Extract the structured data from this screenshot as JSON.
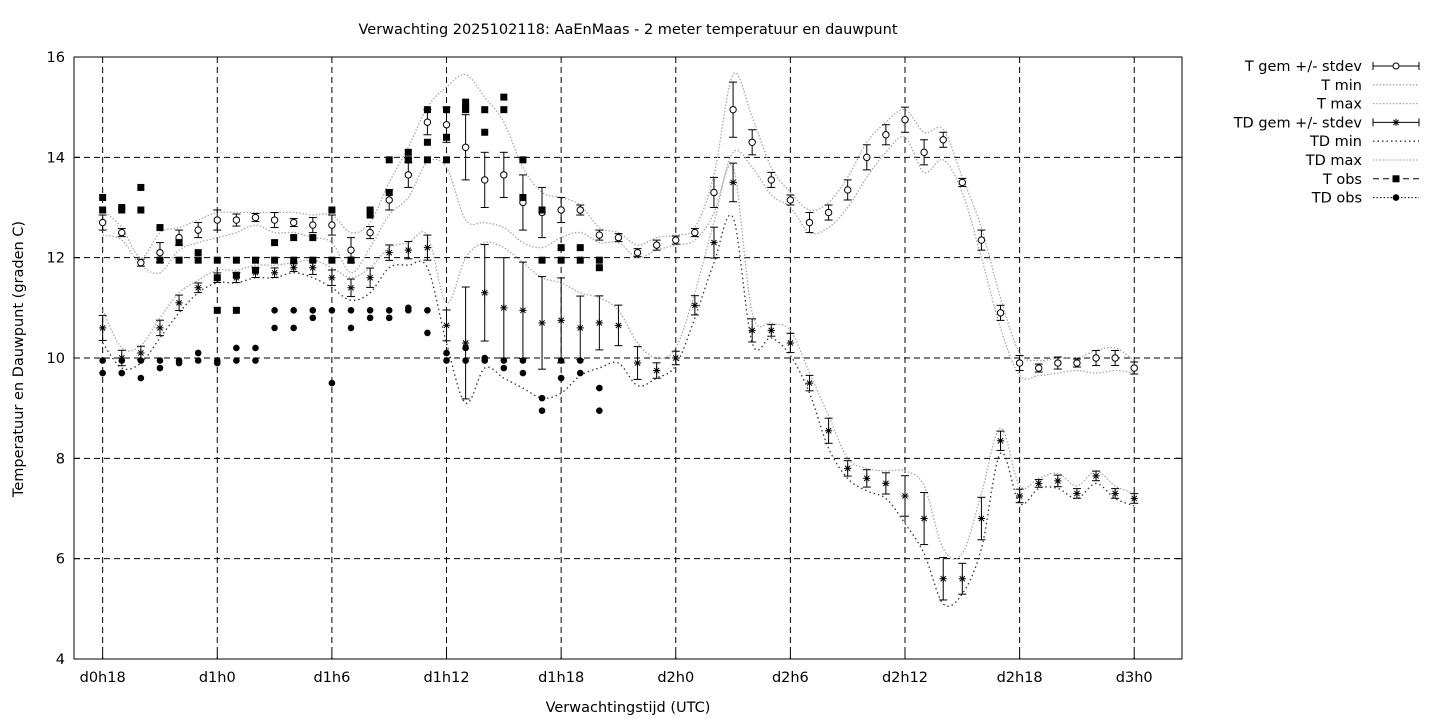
{
  "chart_data": {
    "type": "line",
    "title": "Verwachting 2025102118: AaEnMaas - 2 meter temperatuur en dauwpunt",
    "xlabel": "Verwachtingstijd (UTC)",
    "ylabel": "Temperatuur en Dauwpunt (graden C)",
    "xlim": [
      -1.5,
      56.5
    ],
    "ylim": [
      4,
      16
    ],
    "x_ticks": [
      {
        "x": 0,
        "label": "d0h18"
      },
      {
        "x": 6,
        "label": "d1h0"
      },
      {
        "x": 12,
        "label": "d1h6"
      },
      {
        "x": 18,
        "label": "d1h12"
      },
      {
        "x": 24,
        "label": "d1h18"
      },
      {
        "x": 30,
        "label": "d2h0"
      },
      {
        "x": 36,
        "label": "d2h6"
      },
      {
        "x": 42,
        "label": "d2h12"
      },
      {
        "x": 48,
        "label": "d2h18"
      },
      {
        "x": 54,
        "label": "d3h0"
      }
    ],
    "y_ticks": [
      4,
      6,
      8,
      10,
      12,
      14,
      16
    ],
    "grid": true,
    "legend_position": "outside-right",
    "series": [
      {
        "name": "T gem +/- stdev",
        "style": "open-circle-errorbar",
        "x": [
          0,
          1,
          2,
          3,
          4,
          5,
          6,
          7,
          8,
          9,
          10,
          11,
          12,
          13,
          14,
          15,
          16,
          17,
          18,
          19,
          20,
          21,
          22,
          23,
          24,
          25,
          26,
          27,
          28,
          29,
          30,
          31,
          32,
          33,
          34,
          35,
          36,
          37,
          38,
          39,
          40,
          41,
          42,
          43,
          44,
          45,
          46,
          47,
          48,
          49,
          50,
          51,
          52,
          53,
          54
        ],
        "y": [
          12.7,
          12.5,
          11.9,
          12.1,
          12.4,
          12.55,
          12.75,
          12.75,
          12.8,
          12.75,
          12.7,
          12.65,
          12.65,
          12.15,
          12.5,
          13.15,
          13.65,
          14.7,
          14.65,
          14.2,
          13.55,
          13.65,
          13.1,
          12.9,
          12.95,
          12.95,
          12.45,
          12.4,
          12.1,
          12.25,
          12.35,
          12.5,
          13.3,
          14.95,
          14.3,
          13.55,
          13.15,
          12.7,
          12.9,
          13.35,
          14.0,
          14.45,
          14.75,
          14.1,
          14.35,
          13.5,
          12.35,
          10.9,
          9.9,
          9.8,
          9.9,
          9.9,
          10.0,
          10.0,
          9.8
        ],
        "stdev": [
          0.15,
          0.08,
          0.07,
          0.2,
          0.15,
          0.15,
          0.2,
          0.12,
          0.08,
          0.15,
          0.08,
          0.15,
          0.2,
          0.25,
          0.12,
          0.2,
          0.25,
          0.25,
          0.35,
          0.65,
          0.55,
          0.45,
          0.55,
          0.5,
          0.25,
          0.1,
          0.1,
          0.08,
          0.08,
          0.1,
          0.08,
          0.08,
          0.3,
          0.55,
          0.25,
          0.15,
          0.1,
          0.2,
          0.15,
          0.2,
          0.25,
          0.2,
          0.25,
          0.25,
          0.15,
          0.08,
          0.2,
          0.15,
          0.15,
          0.08,
          0.12,
          0.08,
          0.15,
          0.15,
          0.12
        ]
      },
      {
        "name": "T min",
        "style": "dotted-light",
        "x": [
          0,
          1,
          2,
          3,
          4,
          5,
          6,
          7,
          8,
          9,
          10,
          11,
          12,
          13,
          14,
          15,
          16,
          17,
          18,
          19,
          20,
          21,
          22,
          23,
          24,
          25,
          26,
          27,
          28,
          29,
          30,
          31,
          32,
          33,
          34,
          35,
          36,
          37,
          38,
          39,
          40,
          41,
          42,
          43,
          44,
          45,
          46,
          47,
          48,
          49,
          50,
          51,
          52,
          53,
          54
        ],
        "y": [
          12.45,
          12.35,
          11.85,
          11.7,
          12.15,
          12.3,
          12.4,
          12.5,
          12.65,
          12.5,
          12.5,
          12.4,
          12.3,
          11.7,
          12.2,
          12.85,
          13.2,
          13.9,
          13.8,
          12.75,
          12.7,
          12.6,
          12.3,
          12.2,
          12.4,
          12.5,
          12.3,
          12.3,
          12.0,
          12.15,
          12.25,
          12.35,
          12.9,
          14.1,
          13.8,
          13.25,
          13.0,
          12.5,
          12.6,
          13.0,
          13.6,
          14.1,
          14.4,
          13.7,
          13.95,
          13.3,
          12.0,
          10.6,
          9.65,
          9.65,
          9.7,
          9.75,
          9.7,
          9.75,
          9.7
        ]
      },
      {
        "name": "T max",
        "style": "dotted-light",
        "x": [
          0,
          1,
          2,
          3,
          4,
          5,
          6,
          7,
          8,
          9,
          10,
          11,
          12,
          13,
          14,
          15,
          16,
          17,
          18,
          19,
          20,
          21,
          22,
          23,
          24,
          25,
          26,
          27,
          28,
          29,
          30,
          31,
          32,
          33,
          34,
          35,
          36,
          37,
          38,
          39,
          40,
          41,
          42,
          43,
          44,
          45,
          46,
          47,
          48,
          49,
          50,
          51,
          52,
          53,
          54
        ],
        "y": [
          12.95,
          12.6,
          12.0,
          12.5,
          12.6,
          12.75,
          12.9,
          12.9,
          12.9,
          12.9,
          12.9,
          12.85,
          12.85,
          12.5,
          12.7,
          13.5,
          14.2,
          15.0,
          15.4,
          15.65,
          15.2,
          14.7,
          13.8,
          13.3,
          13.2,
          13.05,
          12.6,
          12.5,
          12.25,
          12.4,
          12.45,
          12.6,
          13.65,
          15.65,
          14.8,
          13.8,
          13.3,
          12.95,
          13.1,
          13.6,
          14.3,
          14.7,
          14.95,
          14.5,
          14.55,
          13.6,
          12.6,
          11.2,
          10.1,
          9.95,
          10.0,
          10.0,
          10.15,
          10.2,
          9.95
        ]
      },
      {
        "name": "TD gem +/- stdev",
        "style": "star-errorbar",
        "x": [
          0,
          1,
          2,
          3,
          4,
          5,
          6,
          7,
          8,
          9,
          10,
          11,
          12,
          13,
          14,
          15,
          16,
          17,
          18,
          19,
          20,
          21,
          22,
          23,
          24,
          25,
          26,
          27,
          28,
          29,
          30,
          31,
          32,
          33,
          34,
          35,
          36,
          37,
          38,
          39,
          40,
          41,
          42,
          43,
          44,
          45,
          46,
          47,
          48,
          49,
          50,
          51,
          52,
          53,
          54
        ],
        "y": [
          10.6,
          10.0,
          10.1,
          10.6,
          11.1,
          11.4,
          11.6,
          11.6,
          11.7,
          11.7,
          11.8,
          11.8,
          11.6,
          11.4,
          11.6,
          12.1,
          12.15,
          12.2,
          10.65,
          10.3,
          11.3,
          11.0,
          10.95,
          10.7,
          10.75,
          10.6,
          10.7,
          10.65,
          9.9,
          9.75,
          10.0,
          11.05,
          12.3,
          13.5,
          10.55,
          10.55,
          10.3,
          9.5,
          8.55,
          7.8,
          7.6,
          7.5,
          7.25,
          6.8,
          5.6,
          5.6,
          6.8,
          8.35,
          7.25,
          7.5,
          7.55,
          7.3,
          7.65,
          7.3,
          7.2
        ]
      },
      {
        "name": "TD min",
        "style": "dotted-dark",
        "x": [
          0,
          1,
          2,
          3,
          4,
          5,
          6,
          7,
          8,
          9,
          10,
          11,
          12,
          13,
          14,
          15,
          16,
          17,
          18,
          19,
          20,
          21,
          22,
          23,
          24,
          25,
          26,
          27,
          28,
          29,
          30,
          31,
          32,
          33,
          34,
          35,
          36,
          37,
          38,
          39,
          40,
          41,
          42,
          43,
          44,
          45,
          46,
          47,
          48,
          49,
          50,
          51,
          52,
          53,
          54
        ],
        "y": [
          10.3,
          9.8,
          9.9,
          10.4,
          10.9,
          11.3,
          11.5,
          11.5,
          11.6,
          11.6,
          11.7,
          11.6,
          11.4,
          11.15,
          11.3,
          11.8,
          11.85,
          11.8,
          10.3,
          9.1,
          9.8,
          9.6,
          9.4,
          9.2,
          9.3,
          9.65,
          9.8,
          9.9,
          9.45,
          9.6,
          9.85,
          10.8,
          11.9,
          12.8,
          10.3,
          10.4,
          10.05,
          9.3,
          8.2,
          7.6,
          7.35,
          7.2,
          6.7,
          6.1,
          5.1,
          5.3,
          6.2,
          8.1,
          7.1,
          7.4,
          7.4,
          7.2,
          7.5,
          7.2,
          7.05
        ]
      },
      {
        "name": "TD max",
        "style": "dotted-light",
        "x": [
          0,
          1,
          2,
          3,
          4,
          5,
          6,
          7,
          8,
          9,
          10,
          11,
          12,
          13,
          14,
          15,
          16,
          17,
          18,
          19,
          20,
          21,
          22,
          23,
          24,
          25,
          26,
          27,
          28,
          29,
          30,
          31,
          32,
          33,
          34,
          35,
          36,
          37,
          38,
          39,
          40,
          41,
          42,
          43,
          44,
          45,
          46,
          47,
          48,
          49,
          50,
          51,
          52,
          53,
          54
        ],
        "y": [
          10.95,
          10.2,
          10.25,
          10.8,
          11.3,
          11.55,
          11.75,
          11.75,
          11.85,
          11.85,
          11.9,
          11.95,
          11.8,
          11.6,
          11.8,
          12.2,
          12.3,
          12.45,
          11.1,
          12.0,
          12.3,
          12.2,
          11.9,
          11.6,
          11.5,
          11.3,
          11.2,
          10.95,
          10.3,
          10.0,
          10.2,
          11.3,
          12.7,
          13.8,
          10.9,
          10.7,
          10.55,
          9.7,
          8.85,
          8.0,
          7.8,
          7.75,
          7.75,
          7.45,
          6.2,
          6.1,
          7.3,
          8.6,
          7.45,
          7.6,
          7.7,
          7.45,
          7.75,
          7.45,
          7.3
        ]
      },
      {
        "name": "T obs",
        "style": "filled-square",
        "x": [
          0,
          0,
          1,
          1,
          2,
          2,
          3,
          3,
          4,
          4,
          5,
          5,
          6,
          6,
          6,
          7,
          7,
          7,
          8,
          8,
          9,
          9,
          10,
          10,
          11,
          11,
          12,
          12,
          13,
          13,
          14,
          14,
          15,
          15,
          16,
          16,
          16,
          17,
          17,
          17,
          18,
          18,
          18,
          19,
          19,
          19,
          20,
          20,
          21,
          21,
          22,
          22,
          23,
          23,
          24,
          24,
          25,
          25,
          26,
          26
        ],
        "y": [
          13.2,
          12.95,
          13.0,
          12.95,
          13.4,
          12.95,
          12.6,
          11.95,
          12.3,
          11.95,
          12.1,
          11.95,
          11.95,
          11.6,
          10.95,
          11.95,
          11.65,
          10.95,
          11.95,
          11.75,
          12.3,
          11.95,
          12.4,
          11.95,
          12.4,
          11.95,
          12.95,
          11.95,
          11.95,
          11.95,
          12.95,
          12.85,
          13.95,
          13.3,
          14.1,
          13.95,
          13.95,
          14.95,
          14.3,
          13.95,
          14.95,
          14.4,
          13.95,
          15.1,
          14.95,
          15.0,
          14.95,
          14.5,
          15.2,
          14.95,
          13.95,
          13.2,
          12.95,
          11.95,
          12.2,
          11.95,
          12.2,
          11.95,
          11.95,
          11.8
        ]
      },
      {
        "name": "TD obs",
        "style": "filled-circle",
        "x": [
          0,
          0,
          1,
          1,
          2,
          2,
          3,
          3,
          4,
          4,
          5,
          5,
          6,
          6,
          7,
          7,
          8,
          8,
          9,
          9,
          10,
          10,
          11,
          11,
          12,
          12,
          13,
          13,
          14,
          14,
          15,
          15,
          16,
          16,
          17,
          17,
          18,
          18,
          19,
          19,
          20,
          20,
          21,
          21,
          22,
          22,
          23,
          23,
          24,
          24,
          25,
          25,
          26,
          26
        ],
        "y": [
          9.95,
          9.7,
          9.95,
          9.7,
          9.95,
          9.6,
          9.95,
          9.8,
          9.95,
          9.9,
          10.1,
          9.95,
          9.95,
          9.9,
          10.2,
          9.95,
          10.2,
          9.95,
          10.95,
          10.6,
          10.95,
          10.6,
          10.95,
          10.8,
          10.95,
          9.5,
          10.95,
          10.6,
          10.95,
          10.8,
          10.95,
          10.8,
          11.0,
          10.95,
          10.95,
          10.5,
          10.1,
          9.95,
          10.2,
          9.95,
          10.0,
          9.95,
          9.95,
          9.8,
          9.95,
          9.7,
          9.2,
          8.95,
          9.95,
          9.6,
          9.95,
          9.7,
          9.4,
          8.95
        ]
      }
    ]
  }
}
